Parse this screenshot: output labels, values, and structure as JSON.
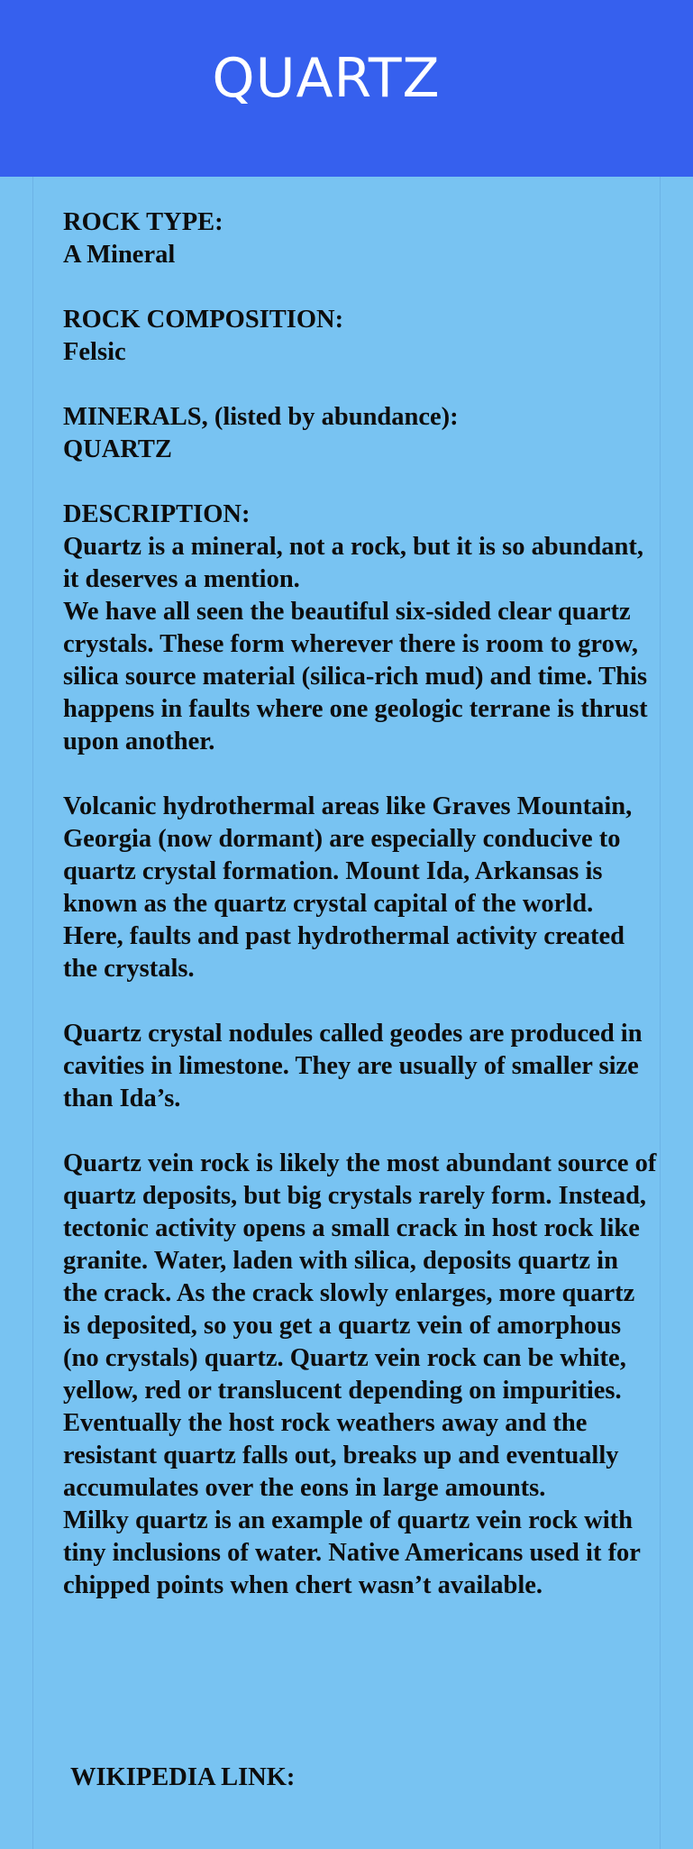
{
  "header": {
    "title": "QUARTZ"
  },
  "rock_type": {
    "label": "ROCK TYPE:",
    "value": "A Mineral"
  },
  "rock_composition": {
    "label": "ROCK COMPOSITION:",
    "value": "Felsic"
  },
  "minerals": {
    "label": "MINERALS, (listed by abundance):",
    "value": "QUARTZ"
  },
  "description": {
    "label": "DESCRIPTION:",
    "para1": "Quartz is a mineral, not a rock, but it is so abundant, it deserves a mention.",
    "para2": "We have all seen the beautiful six-sided clear quartz crystals.  These form wherever there is room to grow, silica source material (silica-rich mud) and time.  This happens in faults where one geologic terrane is thrust upon another.",
    "para3": "Volcanic hydrothermal areas like Graves Mountain, Georgia (now dormant) are especially conducive to quartz crystal formation. Mount Ida, Arkansas is known as the quartz crystal capital of the world. Here, faults and past hydrothermal activity created the crystals.",
    "para4": "Quartz crystal nodules called geodes are produced in cavities in limestone. They are usually of smaller size than Ida’s.",
    "para5": "Quartz vein rock is likely the most abundant source of quartz deposits, but big crystals rarely form. Instead, tectonic activity opens a small crack in host rock like granite. Water, laden with silica, deposits quartz in the crack. As the crack slowly enlarges, more quartz is deposited, so you get a quartz vein of amorphous (no crystals) quartz.  Quartz vein rock can be white, yellow, red or translucent depending on impurities.  Eventually the host rock weathers away and the resistant quartz falls out, breaks up and eventually accumulates over the eons in large amounts.",
    "para6": "Milky quartz is an example of quartz vein rock with tiny inclusions of water. Native Americans used it for chipped points when chert wasn’t available."
  },
  "wikipedia": {
    "label": "WIKIPEDIA LINK:"
  }
}
